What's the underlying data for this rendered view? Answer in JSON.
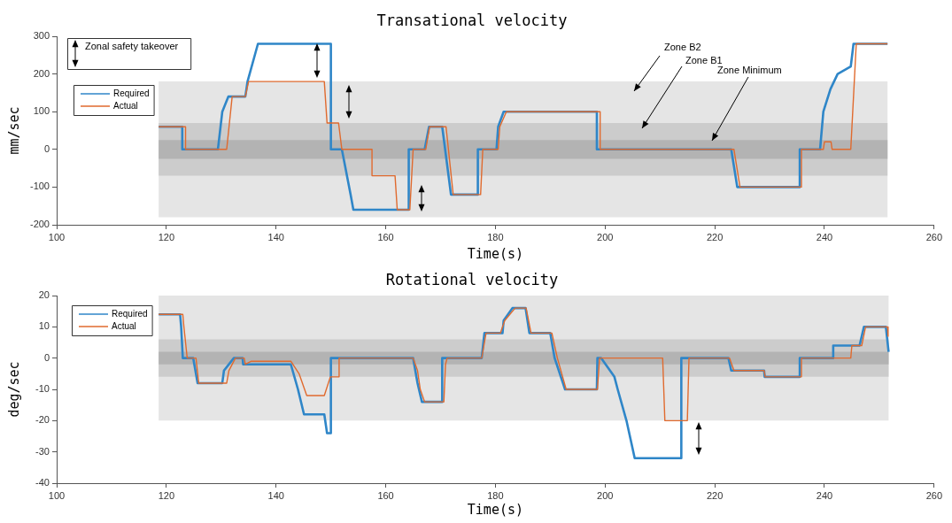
{
  "chart_data": [
    {
      "type": "line",
      "title": "Transational velocity",
      "xlabel": "Time(s)",
      "ylabel": "mm/sec",
      "xlim": [
        100,
        260
      ],
      "xticks": [
        100,
        120,
        140,
        160,
        180,
        200,
        220,
        240,
        260
      ],
      "ylim": [
        -200,
        300
      ],
      "yticks": [
        -200,
        -100,
        0,
        100,
        200,
        300
      ],
      "legend": "top left",
      "marker": "none",
      "line_style": "solid",
      "annotations": [
        "Zonal safety takeover"
      ],
      "bands": [
        {
          "axis": "y",
          "from": -180,
          "to": 180,
          "color": "#e5e5e5",
          "label": "Zone B2"
        },
        {
          "axis": "y",
          "from": -70,
          "to": 70,
          "color": "#cccccc",
          "label": "Zone B1"
        },
        {
          "axis": "y",
          "from": -25,
          "to": 25,
          "color": "#b3b3b3",
          "label": "Zone Minimum"
        }
      ],
      "series": [
        {
          "name": "Required",
          "color": "#2f86c8",
          "x": [
            118.6,
            122.9,
            122.9,
            129.4,
            130.2,
            131.3,
            134.4,
            134.8,
            136.7,
            150.0,
            150.0,
            152.0,
            153.6,
            154.1,
            164.2,
            164.2,
            167.1,
            167.9,
            170.3,
            171.9,
            176.8,
            176.8,
            180.2,
            180.5,
            181.5,
            198.5,
            198.5,
            223.0,
            224.1,
            235.5,
            235.5,
            239.2,
            239.8,
            241.1,
            242.4,
            244.8,
            245.3,
            251.5
          ],
          "values": [
            60,
            60,
            0,
            0,
            100,
            140,
            140,
            180,
            280,
            280,
            0,
            0,
            -120,
            -160,
            -160,
            0,
            0,
            60,
            60,
            -120,
            -120,
            0,
            0,
            60,
            100,
            100,
            0,
            0,
            -100,
            -100,
            0,
            0,
            100,
            160,
            200,
            220,
            280,
            280
          ]
        },
        {
          "name": "Actual",
          "color": "#e06a2e",
          "x": [
            118.6,
            123.5,
            123.5,
            131.0,
            132.0,
            134.4,
            135.0,
            148.8,
            149.3,
            151.4,
            152.0,
            157.5,
            157.5,
            161.7,
            162.1,
            164.4,
            165.0,
            167.3,
            168.0,
            171.0,
            172.3,
            177.3,
            177.7,
            180.5,
            180.8,
            182.0,
            199.1,
            199.1,
            223.5,
            224.6,
            235.8,
            235.8,
            239.8,
            240.0,
            241.2,
            241.4,
            244.8,
            245.8,
            251.5
          ],
          "values": [
            60,
            60,
            0,
            0,
            140,
            140,
            180,
            180,
            70,
            70,
            0,
            0,
            -70,
            -70,
            -160,
            -160,
            0,
            0,
            60,
            60,
            -120,
            -120,
            0,
            0,
            60,
            100,
            100,
            0,
            0,
            -100,
            -100,
            0,
            0,
            20,
            20,
            0,
            0,
            280,
            280
          ]
        }
      ]
    },
    {
      "type": "line",
      "title": "Rotational velocity",
      "xlabel": "Time(s)",
      "ylabel": "deg/sec",
      "xlim": [
        100,
        260
      ],
      "xticks": [
        100,
        120,
        140,
        160,
        180,
        200,
        220,
        240,
        260
      ],
      "ylim": [
        -40,
        20
      ],
      "yticks": [
        -40,
        -30,
        -20,
        -10,
        0,
        10,
        20
      ],
      "legend": "top left",
      "marker": "none",
      "line_style": "solid",
      "bands": [
        {
          "axis": "y",
          "from": -20,
          "to": 20,
          "color": "#e5e5e5"
        },
        {
          "axis": "y",
          "from": -6,
          "to": 6,
          "color": "#cccccc"
        },
        {
          "axis": "y",
          "from": -2,
          "to": 2,
          "color": "#b3b3b3"
        }
      ],
      "series": [
        {
          "name": "Required",
          "color": "#2f86c8",
          "x": [
            118.6,
            122.5,
            122.7,
            123.0,
            124.9,
            125.7,
            130.2,
            130.5,
            132.3,
            133.9,
            134.0,
            142.7,
            144.0,
            145.1,
            148.8,
            149.3,
            150.0,
            150.0,
            165.0,
            165.8,
            166.6,
            170.3,
            170.3,
            177.5,
            178.0,
            181.3,
            181.5,
            183.1,
            185.5,
            186.2,
            190.0,
            190.8,
            192.7,
            198.5,
            198.6,
            199.3,
            201.7,
            202.3,
            203.9,
            205.4,
            213.9,
            213.9,
            222.5,
            223.0,
            229.0,
            229.1,
            235.5,
            235.5,
            241.6,
            241.6,
            246.4,
            247.2,
            251.2,
            251.7
          ],
          "values": [
            14,
            14,
            10,
            0,
            0,
            -8,
            -8,
            -4,
            0,
            0,
            -2,
            -2,
            -10,
            -18,
            -18,
            -24,
            -24,
            0,
            0,
            -8,
            -14,
            -14,
            0,
            0,
            8,
            8,
            12,
            16,
            16,
            8,
            8,
            0,
            -10,
            -10,
            0,
            0,
            -6,
            -10,
            -20,
            -32,
            -32,
            0,
            0,
            -4,
            -4,
            -6,
            -6,
            0,
            0,
            4,
            4,
            10,
            10,
            2
          ]
        },
        {
          "name": "Actual",
          "color": "#e06a2e",
          "x": [
            118.6,
            123.0,
            123.2,
            123.8,
            125.4,
            125.9,
            131.0,
            131.4,
            132.6,
            134.2,
            134.4,
            135.5,
            142.7,
            144.2,
            145.6,
            148.8,
            149.9,
            151.4,
            151.5,
            165.0,
            165.8,
            166.3,
            167.1,
            170.6,
            170.9,
            171.2,
            177.5,
            178.3,
            180.9,
            181.7,
            183.6,
            185.6,
            186.5,
            190.3,
            191.3,
            192.9,
            198.6,
            199.0,
            210.5,
            210.9,
            215.0,
            215.3,
            222.7,
            223.5,
            229.0,
            229.2,
            235.8,
            235.8,
            244.8,
            245.0,
            246.8,
            247.5,
            251.5,
            251.6
          ],
          "values": [
            14,
            14,
            10,
            0,
            0,
            -8,
            -8,
            -4,
            0,
            0,
            -2,
            -1,
            -1,
            -5,
            -12,
            -12,
            -6,
            -6,
            0,
            0,
            -4,
            -10,
            -14,
            -14,
            -2,
            0,
            0,
            8,
            8,
            12,
            16,
            16,
            8,
            8,
            0,
            -10,
            -10,
            0,
            0,
            -20,
            -20,
            0,
            0,
            -4,
            -4,
            -6,
            -6,
            0,
            0,
            4,
            4,
            10,
            10,
            7
          ]
        }
      ]
    }
  ]
}
